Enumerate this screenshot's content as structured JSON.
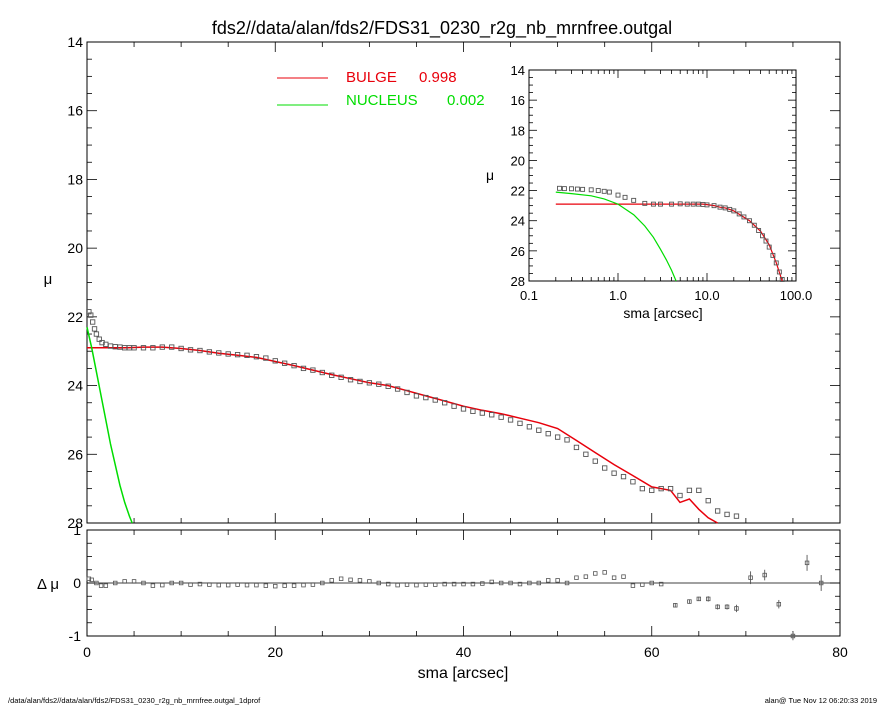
{
  "title": "fds2//data/alan/fds2/FDS31_0230_r2g_nb_mrnfree.outgal",
  "footer": {
    "left": "/data/alan/fds2//data/alan/fds2/FDS31_0230_r2g_nb_mrnfree.outgal_1dprof",
    "right": "alan@  Tue Nov 12 06:20:33 2019"
  },
  "colors": {
    "bulge": "#e8000b",
    "nucleus": "#00dd00",
    "data": "#555555",
    "axis": "#000000"
  },
  "legend": [
    {
      "name": "BULGE",
      "value": "0.998",
      "color": "#e8000b"
    },
    {
      "name": "NUCLEUS",
      "value": "0.002",
      "color": "#00dd00"
    }
  ],
  "chart_data": [
    {
      "id": "main",
      "type": "scatter",
      "xlabel": "",
      "ylabel": "μ",
      "xlim": [
        0,
        80
      ],
      "ylim": [
        28,
        14
      ],
      "y_reversed": true,
      "y_ticks": [
        "14",
        "16",
        "18",
        "20",
        "22",
        "24",
        "26",
        "28"
      ],
      "y_tick_values": [
        14,
        16,
        18,
        20,
        22,
        24,
        26,
        28
      ],
      "observed": {
        "x": [
          0.2,
          0.4,
          0.6,
          0.8,
          1.0,
          1.3,
          1.6,
          2.0,
          2.5,
          3.0,
          3.5,
          4.0,
          4.5,
          5.0,
          6.0,
          7.0,
          8.0,
          9.0,
          10.0,
          11.0,
          12.0,
          13.0,
          14.0,
          15.0,
          16.0,
          17.0,
          18.0,
          19.0,
          20.0,
          21.0,
          22.0,
          23.0,
          24.0,
          25.0,
          26.0,
          27.0,
          28.0,
          29.0,
          30.0,
          31.0,
          32.0,
          33.0,
          34.0,
          35.0,
          36.0,
          37.0,
          38.0,
          39.0,
          40.0,
          41.0,
          42.0,
          43.0,
          44.0,
          45.0,
          46.0,
          47.0,
          48.0,
          49.0,
          50.0,
          51.0,
          52.0,
          53.0,
          54.0,
          55.0,
          56.0,
          57.0,
          58.0,
          59.0,
          60.0,
          61.0,
          62.0,
          63.0,
          64.0,
          65.0,
          66.0,
          67.0,
          68.0,
          69.0
        ],
        "y": [
          21.85,
          21.95,
          22.15,
          22.35,
          22.5,
          22.65,
          22.75,
          22.8,
          22.85,
          22.87,
          22.88,
          22.9,
          22.9,
          22.9,
          22.9,
          22.9,
          22.88,
          22.88,
          22.92,
          22.96,
          22.98,
          23.02,
          23.05,
          23.08,
          23.1,
          23.12,
          23.16,
          23.2,
          23.28,
          23.35,
          23.42,
          23.5,
          23.55,
          23.62,
          23.7,
          23.76,
          23.83,
          23.88,
          23.92,
          23.96,
          24.02,
          24.1,
          24.2,
          24.3,
          24.35,
          24.42,
          24.5,
          24.6,
          24.68,
          24.75,
          24.8,
          24.85,
          24.92,
          25.0,
          25.1,
          25.2,
          25.3,
          25.4,
          25.5,
          25.58,
          25.8,
          26.0,
          26.2,
          26.4,
          26.55,
          26.65,
          26.8,
          27.0,
          27.05,
          27.0,
          27.0,
          27.2,
          27.05,
          27.05,
          27.35,
          27.65,
          27.75,
          27.8
        ]
      },
      "bulge_model": {
        "x": [
          0,
          2,
          4,
          6,
          8,
          10,
          12,
          14,
          16,
          18,
          20,
          22,
          24,
          26,
          28,
          30,
          32,
          34,
          36,
          38,
          40,
          42,
          44,
          46,
          48,
          50,
          52,
          54,
          56,
          58,
          60,
          61,
          62,
          63,
          64,
          65,
          66,
          67
        ],
        "y": [
          22.9,
          22.9,
          22.9,
          22.88,
          22.88,
          22.92,
          22.98,
          23.06,
          23.12,
          23.18,
          23.3,
          23.42,
          23.55,
          23.68,
          23.8,
          23.92,
          24.0,
          24.15,
          24.3,
          24.45,
          24.6,
          24.72,
          24.82,
          24.95,
          25.08,
          25.25,
          25.6,
          25.95,
          26.3,
          26.62,
          26.95,
          27.0,
          27.05,
          27.4,
          27.3,
          27.6,
          27.85,
          28.0
        ]
      },
      "nucleus_model": {
        "x": [
          0,
          0.5,
          1,
          1.5,
          2,
          2.5,
          3,
          3.5,
          4,
          4.5,
          4.8
        ],
        "y": [
          22.3,
          22.9,
          23.6,
          24.3,
          25.0,
          25.7,
          26.3,
          26.9,
          27.4,
          27.8,
          28.0
        ]
      }
    },
    {
      "id": "residual",
      "type": "scatter",
      "xlabel": "sma [arcsec]",
      "ylabel": "Δ μ",
      "xlim": [
        0,
        80
      ],
      "ylim": [
        -1,
        1
      ],
      "x_ticks": [
        "0",
        "20",
        "40",
        "60",
        "80"
      ],
      "x_tick_values": [
        0,
        20,
        40,
        60,
        80
      ],
      "y_ticks": [
        "-1",
        "0",
        "1"
      ],
      "y_tick_values": [
        -1,
        0,
        1
      ],
      "x": [
        0.2,
        0.5,
        1.0,
        1.5,
        2,
        3,
        4,
        5,
        6,
        7,
        8,
        9,
        10,
        11,
        12,
        13,
        14,
        15,
        16,
        17,
        18,
        19,
        20,
        21,
        22,
        23,
        24,
        25,
        26,
        27,
        28,
        29,
        30,
        31,
        32,
        33,
        34,
        35,
        36,
        37,
        38,
        39,
        40,
        41,
        42,
        43,
        44,
        45,
        46,
        47,
        48,
        49,
        50,
        51,
        52,
        53,
        54,
        55,
        56,
        57,
        58,
        59,
        60,
        61,
        62.5,
        64,
        65,
        66,
        67,
        68,
        69,
        70.5,
        72,
        73.5,
        75,
        76.5,
        78
      ],
      "y": [
        0.08,
        0.06,
        0.0,
        -0.05,
        -0.05,
        0.0,
        0.03,
        0.03,
        0.0,
        -0.05,
        -0.04,
        0.0,
        0.0,
        -0.03,
        -0.02,
        -0.03,
        -0.04,
        -0.04,
        -0.03,
        -0.04,
        -0.04,
        -0.05,
        -0.06,
        -0.05,
        -0.05,
        -0.04,
        -0.03,
        0.0,
        0.05,
        0.08,
        0.06,
        0.05,
        0.03,
        0.0,
        -0.02,
        -0.04,
        -0.03,
        -0.04,
        -0.03,
        -0.03,
        -0.02,
        -0.02,
        -0.02,
        -0.02,
        -0.01,
        0.02,
        0.0,
        0.0,
        -0.02,
        0.0,
        0.0,
        0.05,
        0.05,
        0.0,
        0.1,
        0.12,
        0.18,
        0.2,
        0.1,
        0.12,
        -0.05,
        -0.03,
        0.0,
        -0.02,
        -0.42,
        -0.35,
        -0.3,
        -0.3,
        -0.45,
        -0.45,
        -0.48,
        0.1,
        0.15,
        -0.4,
        -1.0,
        0.38,
        0.0
      ],
      "errors": [
        0,
        0,
        0,
        0,
        0,
        0,
        0,
        0,
        0,
        0,
        0,
        0,
        0,
        0,
        0,
        0,
        0,
        0,
        0,
        0,
        0,
        0,
        0,
        0,
        0,
        0,
        0,
        0,
        0,
        0,
        0,
        0,
        0,
        0,
        0,
        0,
        0,
        0,
        0,
        0,
        0,
        0,
        0,
        0,
        0,
        0,
        0,
        0,
        0,
        0,
        0,
        0,
        0,
        0,
        0,
        0,
        0,
        0,
        0,
        0,
        0,
        0,
        0,
        0,
        0.04,
        0.04,
        0.04,
        0.05,
        0.05,
        0.05,
        0.07,
        0.12,
        0.1,
        0.08,
        0.08,
        0.15,
        0.15
      ]
    },
    {
      "id": "inset",
      "type": "scatter",
      "xlabel": "sma [arcsec]",
      "ylabel": "μ",
      "x_log": true,
      "xlim": [
        0.1,
        100
      ],
      "ylim": [
        28,
        14
      ],
      "y_reversed": true,
      "x_ticks": [
        "0.1",
        "1.0",
        "10.0",
        "100.0"
      ],
      "x_tick_values": [
        0.1,
        1,
        10,
        100
      ],
      "y_ticks": [
        "14",
        "16",
        "18",
        "20",
        "22",
        "24",
        "26",
        "28"
      ],
      "y_tick_values": [
        14,
        16,
        18,
        20,
        22,
        24,
        26,
        28
      ],
      "observed": {
        "x": [
          0.22,
          0.25,
          0.3,
          0.35,
          0.4,
          0.5,
          0.6,
          0.7,
          0.8,
          1.0,
          1.2,
          1.5,
          2,
          2.5,
          3,
          4,
          5,
          6,
          7,
          8,
          9,
          10,
          12,
          14,
          16,
          18,
          20,
          23,
          26,
          30,
          34,
          38,
          42,
          46,
          50,
          55,
          60,
          65,
          70
        ],
        "y": [
          21.85,
          21.87,
          21.88,
          21.9,
          21.92,
          21.95,
          22.0,
          22.05,
          22.1,
          22.3,
          22.45,
          22.65,
          22.85,
          22.9,
          22.9,
          22.9,
          22.88,
          22.9,
          22.9,
          22.9,
          22.92,
          22.95,
          23.0,
          23.1,
          23.15,
          23.25,
          23.35,
          23.55,
          23.75,
          24.0,
          24.3,
          24.65,
          25.0,
          25.35,
          25.75,
          26.3,
          26.8,
          27.4,
          27.9
        ]
      },
      "bulge_model": {
        "x": [
          0.2,
          1,
          3,
          5,
          7,
          8,
          9,
          10,
          12,
          14,
          16,
          18,
          20,
          25,
          30,
          40,
          50,
          60,
          70
        ],
        "y": [
          22.9,
          22.9,
          22.9,
          22.9,
          22.9,
          22.9,
          22.9,
          22.93,
          23.0,
          23.1,
          23.15,
          23.25,
          23.35,
          23.7,
          24.0,
          24.7,
          25.6,
          26.8,
          28.0
        ]
      },
      "nucleus_model": {
        "x": [
          0.2,
          0.3,
          0.5,
          0.7,
          1.0,
          1.5,
          2,
          2.5,
          3,
          3.5,
          4,
          4.5
        ],
        "y": [
          22.1,
          22.2,
          22.35,
          22.55,
          22.9,
          23.6,
          24.35,
          25.1,
          25.9,
          26.6,
          27.3,
          28.0
        ]
      }
    }
  ]
}
